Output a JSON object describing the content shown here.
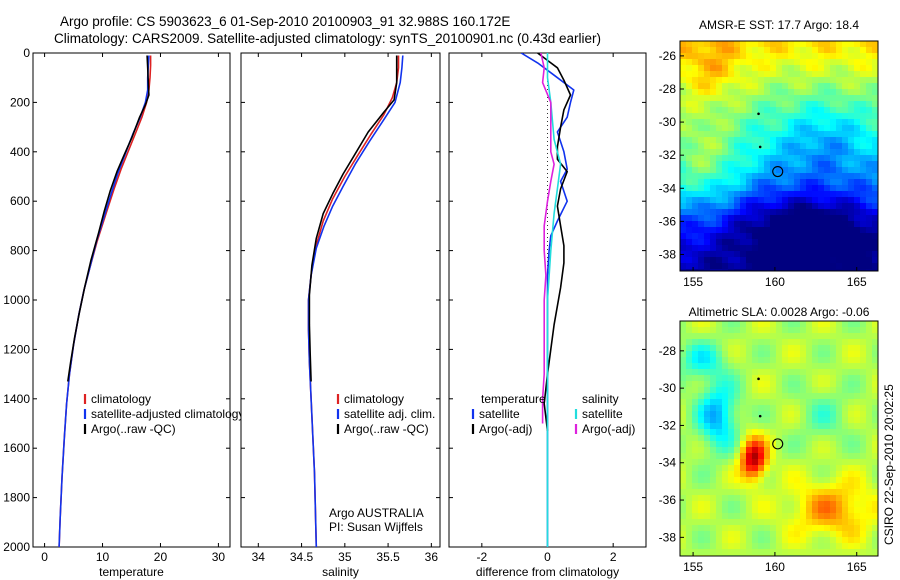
{
  "header": {
    "line1": "Argo profile: CS 5903623_6 01-Sep-2010 20100903_91 32.988S 160.172E",
    "line2": "Climatology: CARS2009. Satellite-adjusted climatology: synTS_20100901.nc (0.43d earlier)"
  },
  "credit": "CSIRO 22-Sep-2010 20:02:25",
  "colors": {
    "climatology": "#dd2222",
    "satellite": "#1133ee",
    "argo": "#000000",
    "sal_satellite": "#22dddd",
    "sal_argo": "#dd22dd"
  },
  "chart_data": [
    {
      "type": "line",
      "xlabel": "temperature",
      "xlim": [
        -2,
        32
      ],
      "ylim": [
        2000,
        0
      ],
      "xticks": [
        0,
        10,
        20,
        30
      ],
      "yticks": [
        0,
        200,
        400,
        600,
        800,
        1000,
        1200,
        1400,
        1600,
        1800,
        2000
      ],
      "legend": [
        "climatology",
        "satellite-adjusted climatology",
        "Argo(..raw -QC)"
      ],
      "series": [
        {
          "name": "climatology",
          "color": "climatology",
          "points": [
            [
              18.3,
              10
            ],
            [
              18.3,
              50
            ],
            [
              18.2,
              100
            ],
            [
              18.0,
              150
            ],
            [
              17.6,
              200
            ],
            [
              16.8,
              260
            ],
            [
              15.6,
              330
            ],
            [
              14.4,
              400
            ],
            [
              13.2,
              470
            ],
            [
              12.0,
              550
            ],
            [
              10.6,
              650
            ],
            [
              9.1,
              760
            ],
            [
              7.8,
              870
            ],
            [
              6.8,
              960
            ],
            [
              5.9,
              1060
            ],
            [
              5.0,
              1180
            ],
            [
              4.3,
              1300
            ],
            [
              3.8,
              1420
            ],
            [
              3.4,
              1560
            ],
            [
              3.0,
              1720
            ],
            [
              2.7,
              1880
            ],
            [
              2.5,
              2000
            ]
          ]
        },
        {
          "name": "satellite-adjusted climatology",
          "color": "satellite",
          "points": [
            [
              18.0,
              10
            ],
            [
              17.9,
              50
            ],
            [
              17.8,
              100
            ],
            [
              17.8,
              150
            ],
            [
              17.4,
              200
            ],
            [
              16.5,
              260
            ],
            [
              15.2,
              330
            ],
            [
              13.9,
              410
            ],
            [
              12.6,
              490
            ],
            [
              11.5,
              570
            ],
            [
              10.3,
              660
            ],
            [
              9.0,
              760
            ],
            [
              7.8,
              870
            ],
            [
              6.8,
              960
            ],
            [
              5.9,
              1060
            ],
            [
              5.0,
              1180
            ],
            [
              4.3,
              1300
            ],
            [
              3.8,
              1420
            ],
            [
              3.4,
              1560
            ],
            [
              3.0,
              1720
            ],
            [
              2.7,
              1880
            ],
            [
              2.5,
              2000
            ]
          ]
        },
        {
          "name": "Argo(..raw -QC)",
          "color": "argo",
          "points": [
            [
              17.7,
              10
            ],
            [
              17.8,
              60
            ],
            [
              17.9,
              120
            ],
            [
              18.0,
              170
            ],
            [
              17.4,
              210
            ],
            [
              16.4,
              260
            ],
            [
              15.1,
              340
            ],
            [
              13.6,
              420
            ],
            [
              12.5,
              480
            ],
            [
              11.3,
              560
            ],
            [
              10.3,
              640
            ],
            [
              9.3,
              730
            ],
            [
              8.0,
              840
            ],
            [
              6.9,
              950
            ],
            [
              6.0,
              1050
            ],
            [
              5.2,
              1150
            ],
            [
              4.5,
              1250
            ],
            [
              4.0,
              1330
            ]
          ]
        }
      ]
    },
    {
      "type": "line",
      "xlabel": "salinity",
      "xlim": [
        33.8,
        36.1
      ],
      "ylim": [
        2000,
        0
      ],
      "xticks": [
        34,
        34.5,
        35,
        35.5,
        36
      ],
      "yticks": [
        0,
        200,
        400,
        600,
        800,
        1000,
        1200,
        1400,
        1600,
        1800,
        2000
      ],
      "legend": [
        "climatology",
        "satellite adj. clim.",
        "Argo(..raw -QC)"
      ],
      "annotation": [
        "Argo AUSTRALIA",
        "PI: Susan Wijffels"
      ],
      "series": [
        {
          "name": "climatology",
          "color": "climatology",
          "points": [
            [
              35.62,
              10
            ],
            [
              35.62,
              60
            ],
            [
              35.6,
              120
            ],
            [
              35.55,
              180
            ],
            [
              35.45,
              250
            ],
            [
              35.3,
              330
            ],
            [
              35.14,
              420
            ],
            [
              35.0,
              500
            ],
            [
              34.86,
              590
            ],
            [
              34.75,
              680
            ],
            [
              34.66,
              790
            ],
            [
              34.61,
              900
            ],
            [
              34.58,
              1000
            ],
            [
              34.58,
              1120
            ],
            [
              34.59,
              1250
            ],
            [
              34.61,
              1400
            ],
            [
              34.63,
              1550
            ],
            [
              34.65,
              1700
            ],
            [
              34.66,
              1850
            ],
            [
              34.67,
              2000
            ]
          ]
        },
        {
          "name": "satellite adj. clim.",
          "color": "satellite",
          "points": [
            [
              35.67,
              10
            ],
            [
              35.66,
              60
            ],
            [
              35.64,
              120
            ],
            [
              35.58,
              200
            ],
            [
              35.45,
              270
            ],
            [
              35.28,
              360
            ],
            [
              35.12,
              450
            ],
            [
              34.98,
              540
            ],
            [
              34.86,
              620
            ],
            [
              34.76,
              700
            ],
            [
              34.67,
              790
            ],
            [
              34.61,
              900
            ],
            [
              34.58,
              1000
            ],
            [
              34.58,
              1120
            ],
            [
              34.59,
              1250
            ],
            [
              34.61,
              1400
            ],
            [
              34.63,
              1550
            ],
            [
              34.65,
              1700
            ],
            [
              34.66,
              1850
            ],
            [
              34.67,
              2000
            ]
          ]
        },
        {
          "name": "Argo(..raw -QC)",
          "color": "argo",
          "points": [
            [
              35.6,
              10
            ],
            [
              35.6,
              60
            ],
            [
              35.6,
              120
            ],
            [
              35.57,
              190
            ],
            [
              35.45,
              240
            ],
            [
              35.27,
              320
            ],
            [
              35.1,
              420
            ],
            [
              34.98,
              490
            ],
            [
              34.86,
              570
            ],
            [
              34.75,
              650
            ],
            [
              34.67,
              750
            ],
            [
              34.62,
              860
            ],
            [
              34.59,
              980
            ],
            [
              34.59,
              1100
            ],
            [
              34.6,
              1220
            ],
            [
              34.61,
              1330
            ]
          ]
        }
      ]
    },
    {
      "type": "line",
      "xlabel": "difference from climatology",
      "xlim": [
        -3,
        3
      ],
      "ylim": [
        2000,
        0
      ],
      "xticks": [
        -2,
        0,
        2
      ],
      "yticks": [
        0,
        200,
        400,
        600,
        800,
        1000,
        1200,
        1400,
        1600,
        1800,
        2000
      ],
      "legend_left_title": "temperature",
      "legend_right_title": "salinity",
      "legend": [
        "satellite",
        "Argo(-adj)",
        "satellite",
        "Argo(-adj)"
      ],
      "series": [
        {
          "name": "temperature satellite",
          "color": "satellite",
          "points": [
            [
              -0.8,
              0
            ],
            [
              -0.3,
              40
            ],
            [
              0.2,
              90
            ],
            [
              0.8,
              150
            ],
            [
              0.7,
              200
            ],
            [
              0.6,
              260
            ],
            [
              0.3,
              320
            ],
            [
              0.5,
              400
            ],
            [
              0.6,
              470
            ],
            [
              0.4,
              520
            ],
            [
              0.6,
              600
            ],
            [
              0.3,
              680
            ],
            [
              0.1,
              740
            ],
            [
              0.05,
              800
            ],
            [
              0,
              900
            ],
            [
              0,
              1100
            ],
            [
              0,
              1300
            ],
            [
              0,
              1500
            ],
            [
              0,
              1700
            ],
            [
              0,
              1900
            ],
            [
              0,
              2000
            ]
          ]
        },
        {
          "name": "temperature Argo(-adj)",
          "color": "argo",
          "points": [
            [
              -0.3,
              0
            ],
            [
              0,
              30
            ],
            [
              0.3,
              60
            ],
            [
              0.5,
              110
            ],
            [
              0.7,
              170
            ],
            [
              0.5,
              230
            ],
            [
              0.4,
              300
            ],
            [
              0.3,
              380
            ],
            [
              0.3,
              430
            ],
            [
              0.6,
              480
            ],
            [
              0.4,
              550
            ],
            [
              0.3,
              620
            ],
            [
              0.4,
              700
            ],
            [
              0.5,
              780
            ],
            [
              0.5,
              850
            ],
            [
              0.4,
              950
            ],
            [
              0.2,
              1100
            ],
            [
              0.1,
              1200
            ],
            [
              0.0,
              1300
            ],
            [
              -0.1,
              1420
            ],
            [
              0.0,
              1530
            ]
          ]
        },
        {
          "name": "salinity satellite",
          "color": "sal_satellite",
          "points": [
            [
              0,
              0
            ],
            [
              0,
              100
            ],
            [
              0.1,
              200
            ],
            [
              0.2,
              350
            ],
            [
              0.4,
              450
            ],
            [
              0.3,
              550
            ],
            [
              0.2,
              650
            ],
            [
              0.1,
              800
            ],
            [
              0,
              1000
            ],
            [
              0,
              1200
            ],
            [
              0,
              1400
            ],
            [
              0,
              1600
            ],
            [
              0,
              1800
            ],
            [
              0,
              2000
            ]
          ]
        },
        {
          "name": "salinity Argo(-adj)",
          "color": "sal_argo",
          "points": [
            [
              -0.2,
              0
            ],
            [
              -0.1,
              60
            ],
            [
              -0.15,
              120
            ],
            [
              0.1,
              200
            ],
            [
              0.1,
              300
            ],
            [
              0.1,
              400
            ],
            [
              0.2,
              450
            ],
            [
              0.1,
              520
            ],
            [
              0,
              600
            ],
            [
              -0.1,
              700
            ],
            [
              -0.1,
              800
            ],
            [
              -0.05,
              900
            ],
            [
              -0.1,
              1000
            ],
            [
              -0.1,
              1100
            ],
            [
              -0.1,
              1200
            ],
            [
              -0.1,
              1300
            ],
            [
              -0.15,
              1400
            ],
            [
              -0.15,
              1500
            ]
          ]
        }
      ]
    },
    {
      "type": "heatmap",
      "title": "AMSR-E SST: 17.7 Argo: 18.4",
      "xlim": [
        154.2,
        166.3
      ],
      "ylim": [
        -39,
        -25.1
      ],
      "xticks": [
        155,
        160,
        165
      ],
      "yticks": [
        -26,
        -28,
        -30,
        -32,
        -34,
        -36,
        -38
      ],
      "marker": [
        160.172,
        -32.988
      ]
    },
    {
      "type": "heatmap",
      "title": "Altimetric SLA: 0.0028 Argo: -0.06",
      "xlim": [
        154.2,
        166.3
      ],
      "ylim": [
        -39,
        -26.4
      ],
      "xticks": [
        155,
        160,
        165
      ],
      "yticks": [
        -28,
        -30,
        -32,
        -34,
        -36,
        -38
      ],
      "marker": [
        160.172,
        -32.988
      ]
    }
  ]
}
